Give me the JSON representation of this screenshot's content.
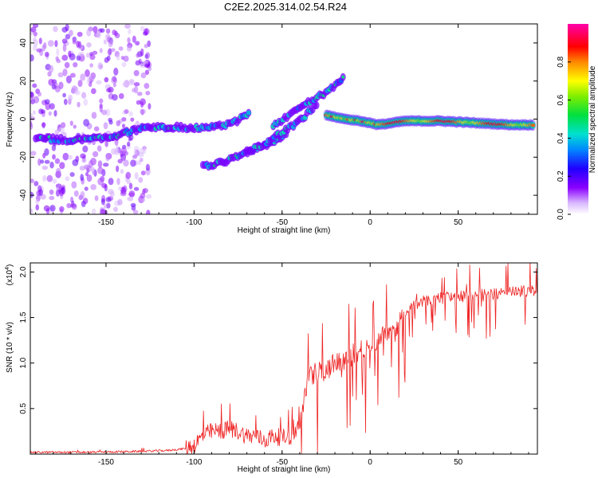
{
  "title": "C2E2.2025.314.02.54.R24",
  "chart_data": [
    {
      "type": "heatmap",
      "name": "spectrogram",
      "xlabel": "Height of straight line (km)",
      "ylabel": "Frequency (Hz)",
      "xlim": [
        -193,
        95
      ],
      "ylim": [
        -50,
        50
      ],
      "xticks": [
        -150,
        -100,
        -50,
        0,
        50
      ],
      "xtick_labels": [
        "-150",
        "-100",
        "-50",
        "0",
        "50"
      ],
      "yticks": [
        -40,
        -20,
        0,
        20,
        40
      ],
      "ytick_labels": [
        "-40",
        "-20",
        "0",
        "20",
        "40"
      ],
      "colorbar": {
        "label": "Normalized spectral amplitude",
        "range": [
          0,
          1
        ],
        "ticks": [
          0.0,
          0.2,
          0.4,
          0.6,
          0.8
        ],
        "tick_labels": [
          "0.0",
          "0.2",
          "0.4",
          "0.6",
          "0.8"
        ],
        "colormap": "rainbow (white-violet-blue-cyan-green-yellow-red-magenta)"
      },
      "features": [
        {
          "name": "noisy band",
          "x_range": [
            -193,
            -125
          ],
          "freq_range": [
            -50,
            50
          ],
          "amplitude": 0.15
        },
        {
          "name": "main track",
          "points": [
            [
              -190,
              -10
            ],
            [
              -170,
              -11
            ],
            [
              -150,
              -10
            ],
            [
              -130,
              -5
            ],
            [
              -115,
              -4
            ],
            [
              -95,
              -5
            ],
            [
              -80,
              -3
            ],
            [
              -68,
              3
            ]
          ],
          "amplitude": 0.4
        },
        {
          "name": "lower streak",
          "points": [
            [
              -95,
              -25
            ],
            [
              -85,
              -23
            ],
            [
              -70,
              -18
            ],
            [
              -55,
              -12
            ],
            [
              -47,
              -8
            ]
          ],
          "amplitude": 0.3
        },
        {
          "name": "rising branch 1",
          "points": [
            [
              -70,
              -17
            ],
            [
              -60,
              -13
            ],
            [
              -50,
              -7
            ],
            [
              -40,
              -1
            ],
            [
              -30,
              8
            ]
          ],
          "amplitude": 0.45
        },
        {
          "name": "rising branch 2",
          "points": [
            [
              -55,
              -4
            ],
            [
              -45,
              3
            ],
            [
              -35,
              9
            ],
            [
              -25,
              14
            ],
            [
              -15,
              22
            ]
          ],
          "amplitude": 0.35
        },
        {
          "name": "bright track",
          "points": [
            [
              -25,
              2
            ],
            [
              -15,
              0
            ],
            [
              -5,
              -1
            ],
            [
              5,
              -3
            ],
            [
              20,
              -1
            ],
            [
              40,
              -1
            ],
            [
              60,
              -2
            ],
            [
              80,
              -3
            ],
            [
              93,
              -3
            ]
          ],
          "amplitude": 1.0
        }
      ]
    },
    {
      "type": "line",
      "name": "snr",
      "xlabel": "Height of straight line (km)",
      "ylabel": "SNR (10 * v/v)",
      "multiplier_label": "(x10",
      "multiplier_exp": "4",
      "multiplier_close": ")",
      "xlim": [
        -193,
        95
      ],
      "ylim": [
        0,
        2.1
      ],
      "xticks": [
        -150,
        -100,
        -50,
        0,
        50
      ],
      "xtick_labels": [
        "-150",
        "-100",
        "-50",
        "0",
        "50"
      ],
      "yticks": [
        0.5,
        1.0,
        1.5,
        2.0
      ],
      "ytick_labels": [
        "0.5",
        "1.0",
        "1.5",
        "2.0"
      ],
      "color": "#ee2222",
      "x": [
        -193,
        -160,
        -130,
        -115,
        -105,
        -100,
        -95,
        -90,
        -85,
        -80,
        -75,
        -70,
        -65,
        -60,
        -55,
        -50,
        -45,
        -42,
        -40,
        -38,
        -35,
        -30,
        -25,
        -20,
        -15,
        -10,
        -5,
        0,
        5,
        10,
        15,
        20,
        25,
        30,
        40,
        50,
        60,
        70,
        80,
        90,
        95
      ],
      "y": [
        0.02,
        0.02,
        0.03,
        0.04,
        0.06,
        0.1,
        0.2,
        0.25,
        0.25,
        0.28,
        0.25,
        0.2,
        0.2,
        0.15,
        0.2,
        0.18,
        0.2,
        0.25,
        0.35,
        0.6,
        0.9,
        0.95,
        0.95,
        1.05,
        1.05,
        1.15,
        1.2,
        1.25,
        1.3,
        1.4,
        1.45,
        1.6,
        1.65,
        1.7,
        1.75,
        1.75,
        1.78,
        1.78,
        1.8,
        1.82,
        1.82
      ]
    }
  ]
}
